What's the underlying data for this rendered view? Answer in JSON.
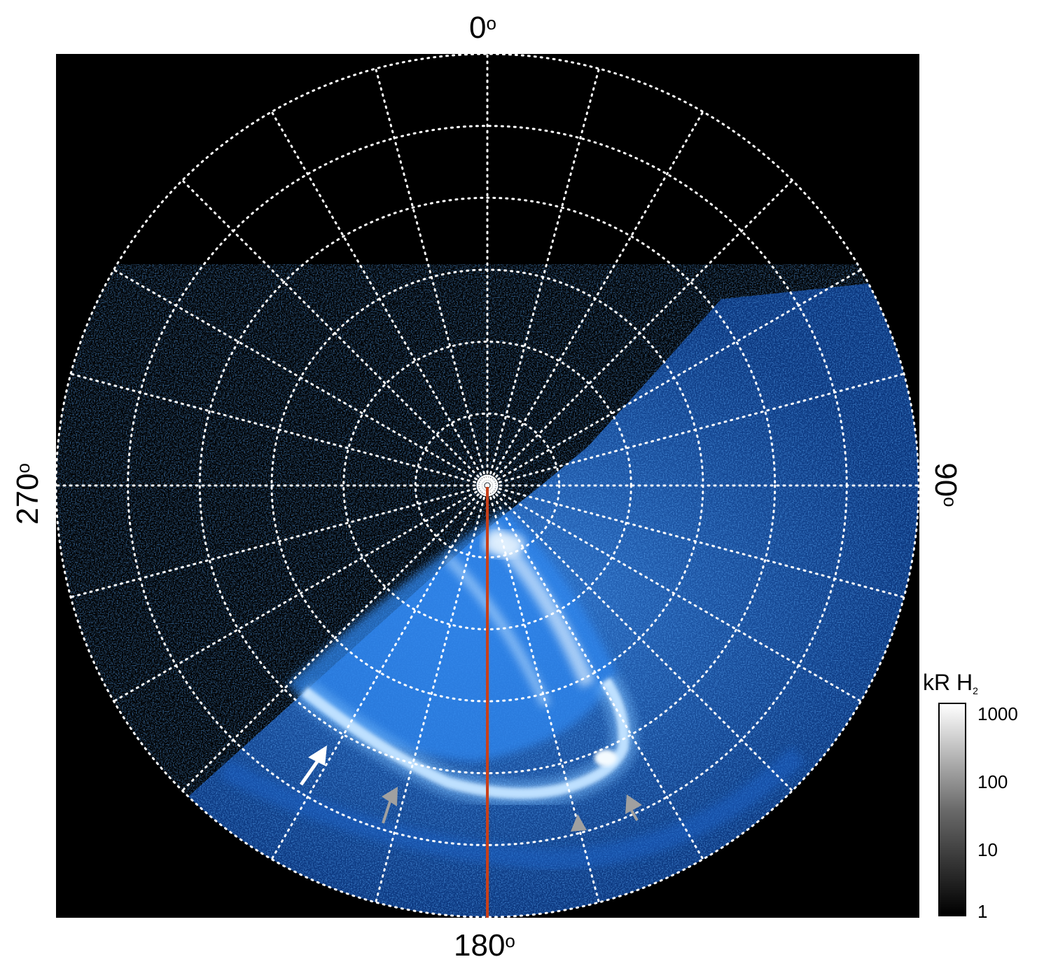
{
  "axis_labels": {
    "top": {
      "value": "0",
      "unit": "o"
    },
    "right": {
      "value": "90",
      "unit": "o"
    },
    "bottom": {
      "value": "180",
      "unit": "o"
    },
    "left": {
      "value": "270",
      "unit": "o"
    }
  },
  "colorbar": {
    "title_main": "kR H",
    "title_sub": "2",
    "scale": "log",
    "ticks": [
      "1000",
      "100",
      "10",
      "1"
    ]
  },
  "colors": {
    "background": "#000000",
    "grid": "#ffffff",
    "aurora_dim": "#0b3c8a",
    "aurora_mid": "#2a7ee8",
    "aurora_bright": "#e8f6ff",
    "meridian_line": "#c8401a",
    "arrow_primary": "#ffffff",
    "arrow_secondary": "#a0a0a0"
  },
  "grid": {
    "longitude_spacing_deg": 15,
    "latitude_circles": 6,
    "style": "dotted"
  }
}
